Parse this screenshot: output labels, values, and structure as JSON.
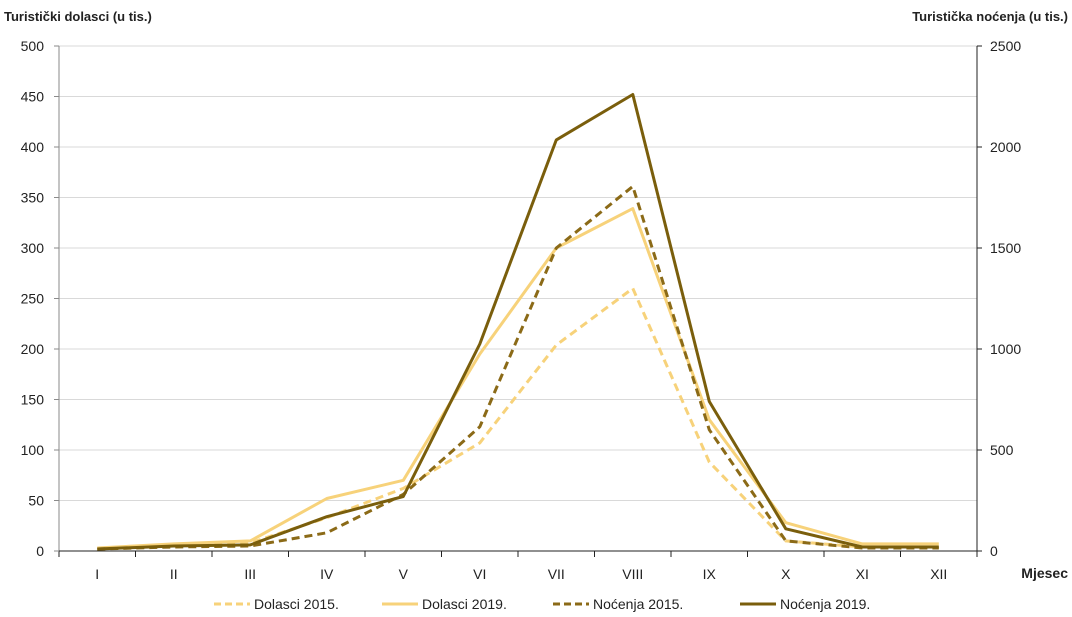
{
  "chart_data": {
    "type": "line",
    "y_left_title": "Turistički dolasci (u tis.)",
    "y_right_title": "Turistička noćenja (u tis.)",
    "x_title": "Mjesec",
    "categories": [
      "I",
      "II",
      "III",
      "IV",
      "V",
      "VI",
      "VII",
      "VIII",
      "IX",
      "X",
      "XI",
      "XII"
    ],
    "y_left_range": [
      0,
      500
    ],
    "y_left_ticks": [
      "0",
      "50",
      "100",
      "150",
      "200",
      "250",
      "300",
      "350",
      "400",
      "450",
      "500"
    ],
    "y_right_range": [
      0,
      2500
    ],
    "y_right_ticks": [
      "0",
      "500",
      "1000",
      "1500",
      "2000",
      "2500"
    ],
    "grid": true,
    "legend_position": "bottom",
    "series": [
      {
        "name": "Dolasci 2015.",
        "axis": "left",
        "style": "dashed",
        "color": "#F7D27A",
        "values": [
          2,
          5,
          8,
          33,
          62,
          107,
          204,
          260,
          88,
          10,
          4,
          4
        ]
      },
      {
        "name": "Dolasci 2019.",
        "axis": "left",
        "style": "solid",
        "color": "#F7D27A",
        "values": [
          3,
          7,
          10,
          52,
          70,
          195,
          300,
          339,
          130,
          28,
          7,
          7
        ]
      },
      {
        "name": "Noćenja 2015.",
        "axis": "right",
        "style": "dashed",
        "color": "#8B6A17",
        "values": [
          10,
          20,
          25,
          90,
          280,
          615,
          1500,
          1805,
          600,
          50,
          15,
          15
        ]
      },
      {
        "name": "Noćenja 2019.",
        "axis": "right",
        "style": "solid",
        "color": "#7A5E0C",
        "values": [
          10,
          25,
          30,
          170,
          270,
          1025,
          2035,
          2260,
          740,
          110,
          20,
          20
        ]
      }
    ]
  }
}
